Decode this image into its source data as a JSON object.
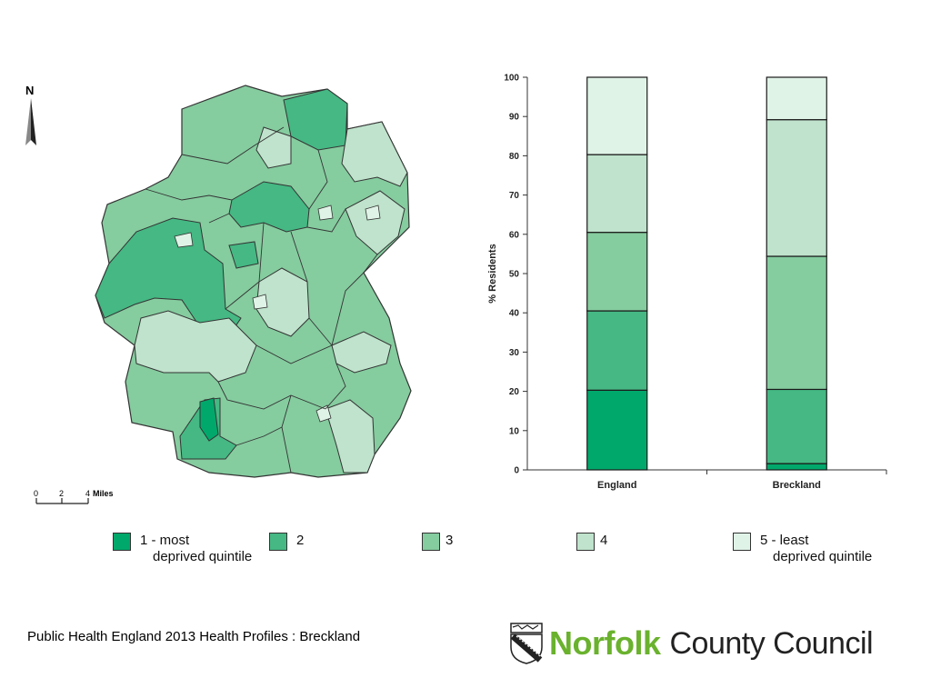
{
  "map": {
    "north_label": "N",
    "scale_ticks": [
      "0",
      "2",
      "4"
    ],
    "scale_unit": "Miles"
  },
  "chart_data": {
    "type": "bar",
    "stacked": true,
    "categories": [
      "England",
      "Breckland"
    ],
    "ylabel": "% Residents",
    "xlabel": "",
    "ylim": [
      0,
      100
    ],
    "yticks": [
      0,
      10,
      20,
      30,
      40,
      50,
      60,
      70,
      80,
      90,
      100
    ],
    "grid": false,
    "series": [
      {
        "name": "1 - most deprived quintile",
        "values": [
          20.3,
          1.6
        ],
        "color": "#00a86b"
      },
      {
        "name": "2",
        "values": [
          20.2,
          18.9
        ],
        "color": "#45b883"
      },
      {
        "name": "3",
        "values": [
          20.0,
          33.9
        ],
        "color": "#85cc9f"
      },
      {
        "name": "4",
        "values": [
          19.8,
          34.8
        ],
        "color": "#bfe3cc"
      },
      {
        "name": "5 - least deprived quintile",
        "values": [
          19.7,
          10.8
        ],
        "color": "#e0f3e7"
      }
    ]
  },
  "legend": {
    "items": [
      {
        "line1": "1 - most",
        "line2": "deprived quintile",
        "color": "#00a86b"
      },
      {
        "line1": "2",
        "line2": "",
        "color": "#45b883"
      },
      {
        "line1": "3",
        "line2": "",
        "color": "#85cc9f"
      },
      {
        "line1": "4",
        "line2": "",
        "color": "#bfe3cc"
      },
      {
        "line1": "5 - least",
        "line2": "deprived quintile",
        "color": "#e0f3e7"
      }
    ]
  },
  "footer": {
    "source": "Public Health England 2013 Health Profiles : Breckland"
  },
  "logo": {
    "brand": "Norfolk",
    "rest": "County Council"
  }
}
